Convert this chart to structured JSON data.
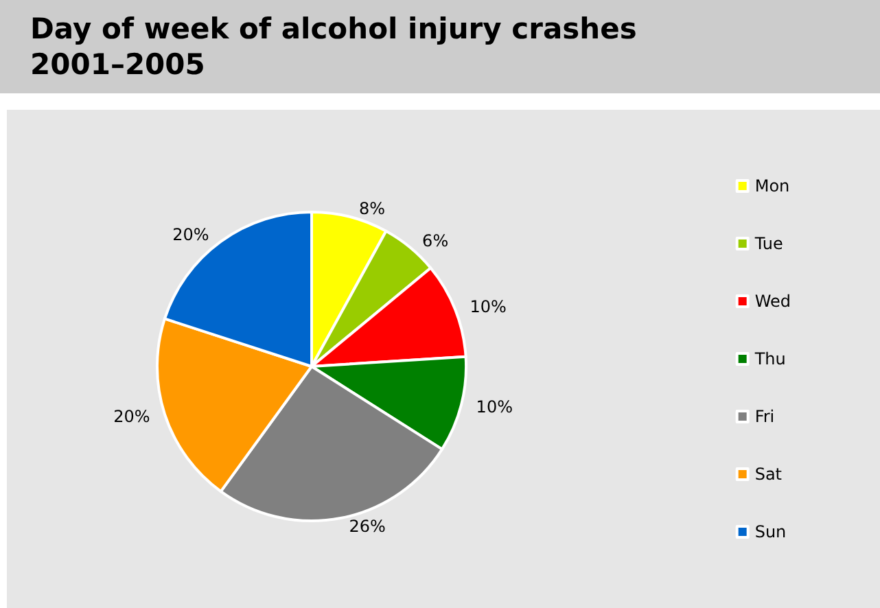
{
  "chart_data": {
    "type": "pie",
    "title": "Day of week of alcohol injury crashes\n2001–2005",
    "categories": [
      "Mon",
      "Tue",
      "Wed",
      "Thu",
      "Fri",
      "Sat",
      "Sun"
    ],
    "values": [
      8,
      6,
      10,
      10,
      26,
      20,
      20
    ],
    "value_labels": [
      "8%",
      "6%",
      "10%",
      "10%",
      "26%",
      "20%",
      "20%"
    ],
    "colors": [
      "#ffff00",
      "#99cc00",
      "#ff0000",
      "#008000",
      "#808080",
      "#ff9900",
      "#0066cc"
    ],
    "legend": "right"
  }
}
